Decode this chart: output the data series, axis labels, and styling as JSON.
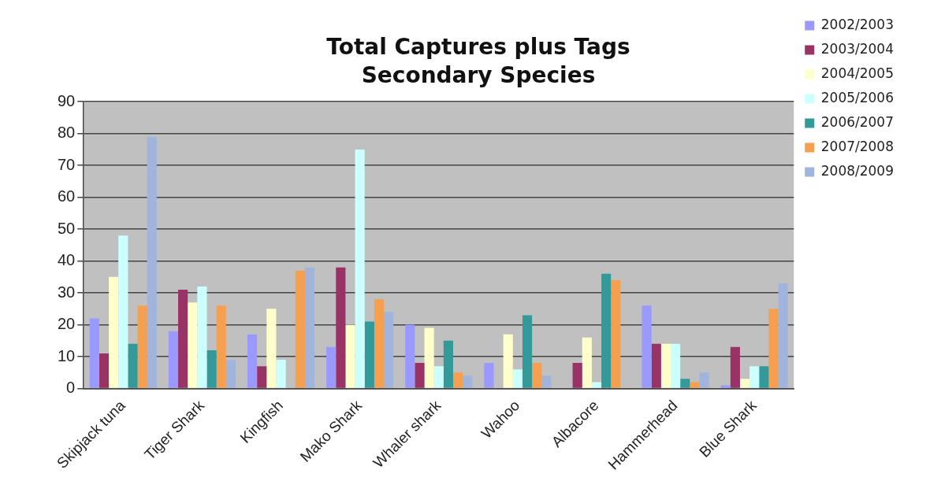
{
  "chart_data": {
    "type": "bar",
    "title": "Total Captures plus Tags",
    "subtitle": "Secondary Species",
    "categories": [
      "Skipjack tuna",
      "Tiger Shark",
      "Kingfish",
      "Mako Shark",
      "Whaler shark",
      "Wahoo",
      "Albacore",
      "Hammerhead",
      "Blue Shark"
    ],
    "series": [
      {
        "name": "2002/2003",
        "color": "#9999ff",
        "values": [
          22,
          18,
          17,
          13,
          20,
          8,
          0,
          26,
          1
        ]
      },
      {
        "name": "2003/2004",
        "color": "#993366",
        "values": [
          11,
          31,
          7,
          38,
          8,
          0,
          8,
          14,
          13
        ]
      },
      {
        "name": "2004/2005",
        "color": "#ffffcc",
        "values": [
          35,
          27,
          25,
          20,
          19,
          17,
          16,
          14,
          3
        ]
      },
      {
        "name": "2005/2006",
        "color": "#ccffff",
        "values": [
          48,
          32,
          9,
          75,
          7,
          6,
          2,
          14,
          7
        ]
      },
      {
        "name": "2006/2007",
        "color": "#339999",
        "values": [
          14,
          12,
          0,
          21,
          15,
          23,
          36,
          3,
          7
        ]
      },
      {
        "name": "2007/2008",
        "color": "#f4a050",
        "values": [
          26,
          26,
          37,
          28,
          5,
          8,
          34,
          2,
          25
        ]
      },
      {
        "name": "2008/2009",
        "color": "#a0b4dc",
        "values": [
          79,
          9,
          38,
          24,
          4,
          4,
          0,
          5,
          33
        ]
      }
    ],
    "ylim": [
      0,
      90
    ],
    "yticks": [
      0,
      10,
      20,
      30,
      40,
      50,
      60,
      70,
      80,
      90
    ],
    "grid": "y",
    "legend": "top right"
  }
}
